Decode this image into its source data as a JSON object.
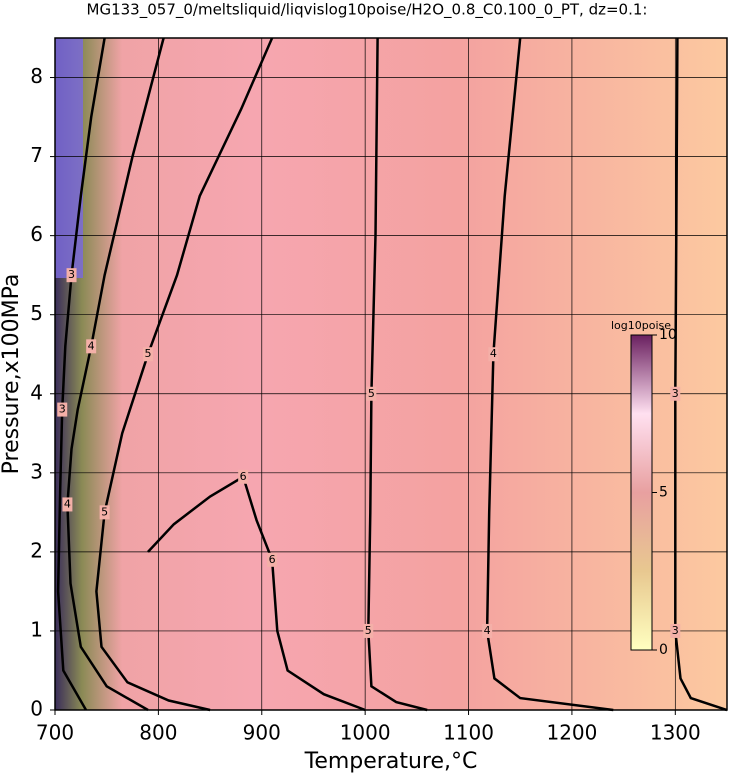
{
  "chart_data": {
    "type": "contour",
    "title": "MG133_057_0/meltsliquid/liqvislog10poise/H2O_0.8_C0.100_0_PT, dz=0.1:",
    "x_label": "Temperature,°C",
    "y_label": "Pressure,x100MPa",
    "xlim": [
      700,
      1350
    ],
    "ylim": [
      0,
      8.5
    ],
    "xticks": [
      700,
      800,
      900,
      1000,
      1100,
      1200,
      1300
    ],
    "yticks": [
      0,
      1,
      2,
      3,
      4,
      5,
      6,
      7,
      8
    ],
    "grid": true,
    "contours": [
      {
        "level": 3,
        "x": [
          1302,
          1301,
          1300,
          1300,
          1305,
          1315,
          1350
        ],
        "y": [
          8.5,
          6,
          4,
          1,
          0.4,
          0.15,
          0.0
        ]
      },
      {
        "level": 4,
        "x": [
          1150,
          1135,
          1124,
          1120,
          1118,
          1125,
          1150,
          1240
        ],
        "y": [
          8.5,
          6.5,
          4.5,
          2.5,
          1,
          0.4,
          0.15,
          0.0
        ]
      },
      {
        "level": 5,
        "x": [
          1012,
          1010,
          1006,
          1005,
          1003,
          1006,
          1030,
          1060
        ],
        "y": [
          8.5,
          6,
          4,
          2.5,
          1,
          0.3,
          0.1,
          0.0
        ]
      },
      {
        "level": 6,
        "x": [
          790,
          815,
          850,
          882,
          895,
          910,
          915,
          925,
          960,
          1000
        ],
        "y": [
          2.0,
          2.35,
          2.7,
          2.95,
          2.4,
          1.9,
          1.0,
          0.5,
          0.2,
          0.0
        ]
      },
      {
        "level": 5,
        "x": [
          910,
          880,
          840,
          818,
          790,
          765,
          748,
          740,
          745,
          770,
          810,
          850
        ],
        "y": [
          8.5,
          7.6,
          6.5,
          5.5,
          4.5,
          3.5,
          2.5,
          1.5,
          0.8,
          0.35,
          0.12,
          0.0
        ]
      },
      {
        "level": 4,
        "x": [
          805,
          775,
          748,
          735,
          722,
          716,
          712,
          715,
          725,
          750,
          790
        ],
        "y": [
          8.5,
          7.0,
          5.5,
          4.6,
          3.8,
          3.3,
          2.6,
          1.6,
          0.8,
          0.3,
          0.0
        ]
      },
      {
        "level": 3,
        "x": [
          748,
          735,
          725,
          716,
          710,
          707,
          705,
          703,
          708,
          730
        ],
        "y": [
          8.5,
          7.5,
          6.5,
          5.5,
          4.6,
          3.8,
          2.8,
          1.5,
          0.5,
          0.0
        ]
      }
    ],
    "colorbar": {
      "label": "log10poise",
      "lim": [
        0,
        10
      ],
      "ticks": [
        0,
        5,
        10
      ]
    }
  }
}
